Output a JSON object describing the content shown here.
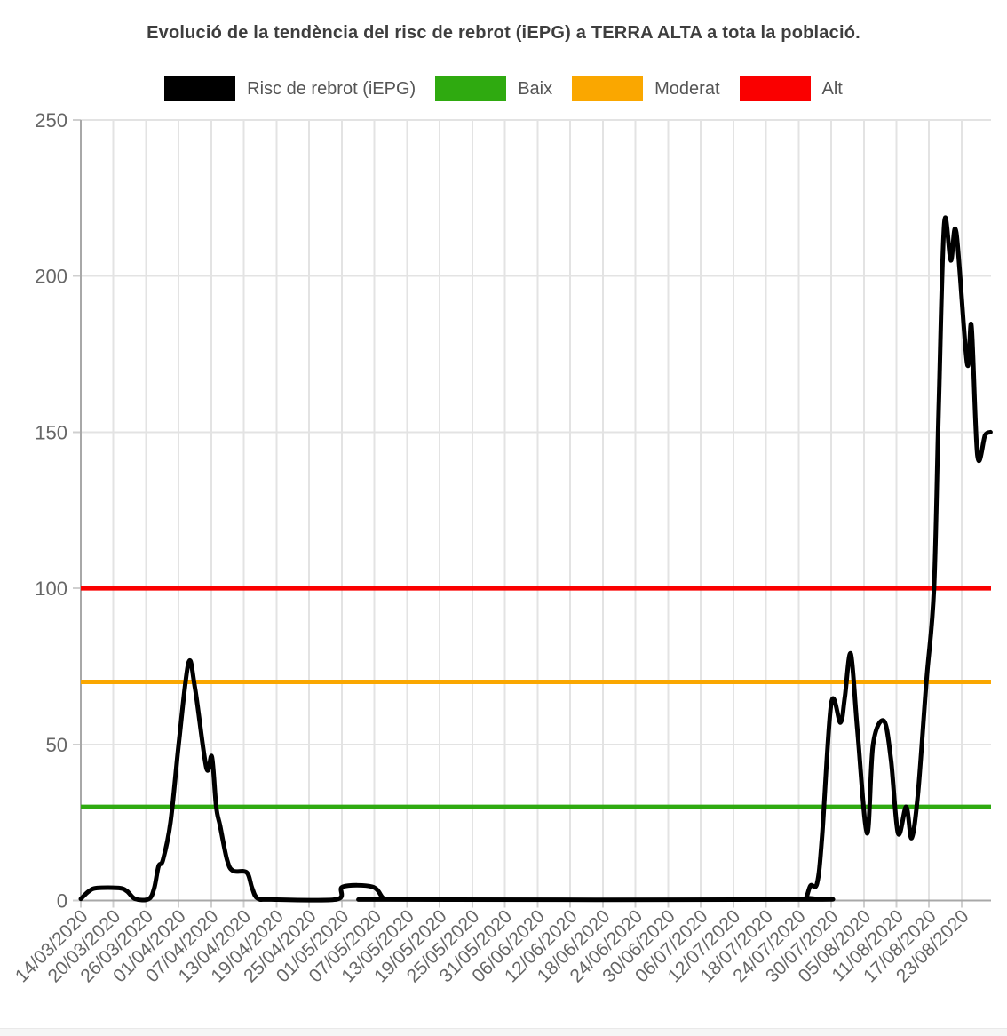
{
  "title": "Evolució de la tendència del risc de rebrot (iEPG) a TERRA ALTA a tota la població.",
  "legend": [
    {
      "label": "Risc de rebrot (iEPG)",
      "color": "#000000"
    },
    {
      "label": "Baix",
      "color": "#2faa10"
    },
    {
      "label": "Moderat",
      "color": "#faa700"
    },
    {
      "label": "Alt",
      "color": "#fa0000"
    }
  ],
  "colors": {
    "series": "#000000",
    "baix": "#2faa10",
    "moderat": "#faa700",
    "alt": "#fa0000",
    "grid": "#e3e3e3",
    "axis": "#a8a8a8",
    "tick_text": "#666666",
    "title_text": "#3e3e3e"
  },
  "chart_data": {
    "type": "line",
    "title": "Evolució de la tendència del risc de rebrot (iEPG) a TERRA ALTA a tota la població.",
    "xlabel": "",
    "ylabel": "",
    "ylim": [
      0,
      250
    ],
    "y_ticks": [
      0,
      50,
      100,
      150,
      200,
      250
    ],
    "grid": true,
    "legend_position": "top",
    "x_unit": "days since 14/03/2020",
    "x_tick_step_days": 6,
    "x_tick_labels": [
      "14/03/2020",
      "20/03/2020",
      "26/03/2020",
      "01/04/2020",
      "07/04/2020",
      "13/04/2020",
      "19/04/2020",
      "25/04/2020",
      "01/05/2020",
      "07/05/2020",
      "13/05/2020",
      "19/05/2020",
      "25/05/2020",
      "31/05/2020",
      "06/06/2020",
      "12/06/2020",
      "18/06/2020",
      "24/06/2020",
      "30/06/2020",
      "06/07/2020",
      "12/07/2020",
      "18/07/2020",
      "24/07/2020",
      "30/07/2020",
      "05/08/2020",
      "11/08/2020",
      "17/08/2020",
      "23/08/2020"
    ],
    "thresholds": [
      {
        "label": "Baix",
        "value": 30,
        "color": "#2faa10"
      },
      {
        "label": "Moderat",
        "value": 70,
        "color": "#faa700"
      },
      {
        "label": "Alt",
        "value": 100,
        "color": "#fa0000"
      }
    ],
    "series": [
      {
        "name": "Risc de rebrot (iEPG)",
        "color": "#000000",
        "points": [
          [
            0,
            0.5
          ],
          [
            1.5,
            3
          ],
          [
            3,
            4
          ],
          [
            7,
            4
          ],
          [
            8.5,
            3
          ],
          [
            10,
            0.5
          ],
          [
            12.5,
            0.5
          ],
          [
            13.5,
            4
          ],
          [
            14.3,
            11
          ],
          [
            15.1,
            13
          ],
          [
            16.5,
            25
          ],
          [
            18,
            50
          ],
          [
            19.8,
            76
          ],
          [
            21,
            68
          ],
          [
            23.1,
            42.5
          ],
          [
            24.1,
            46
          ],
          [
            24.9,
            30
          ],
          [
            25.6,
            24
          ],
          [
            26.9,
            13
          ],
          [
            28,
            9.5
          ],
          [
            30.5,
            9
          ],
          [
            31.5,
            4
          ],
          [
            32.5,
            0.7
          ],
          [
            35,
            0.3
          ],
          [
            46.9,
            0.3
          ],
          [
            48.2,
            4.4
          ],
          [
            53.6,
            4.4
          ],
          [
            55.6,
            0.8
          ],
          [
            57,
            0.3
          ],
          [
            132.5,
            0.3
          ],
          [
            133.4,
            1
          ],
          [
            134.2,
            4.8
          ],
          [
            135.4,
            5.5
          ],
          [
            136.3,
            20
          ],
          [
            138,
            63
          ],
          [
            139.7,
            57
          ],
          [
            140.5,
            65
          ],
          [
            141.6,
            79
          ],
          [
            142.8,
            55
          ],
          [
            144.6,
            21.5
          ],
          [
            145.7,
            50
          ],
          [
            147.7,
            57.5
          ],
          [
            149,
            45
          ],
          [
            150.3,
            21.5
          ],
          [
            151.8,
            30
          ],
          [
            152.8,
            20
          ],
          [
            154,
            35
          ],
          [
            155.5,
            70
          ],
          [
            156.9,
            100
          ],
          [
            157.8,
            160
          ],
          [
            158.8,
            217
          ],
          [
            160,
            205
          ],
          [
            161,
            214
          ],
          [
            163,
            172
          ],
          [
            163.8,
            184
          ],
          [
            164.9,
            142.5
          ],
          [
            166.3,
            149
          ],
          [
            167.3,
            150
          ]
        ]
      }
    ]
  }
}
